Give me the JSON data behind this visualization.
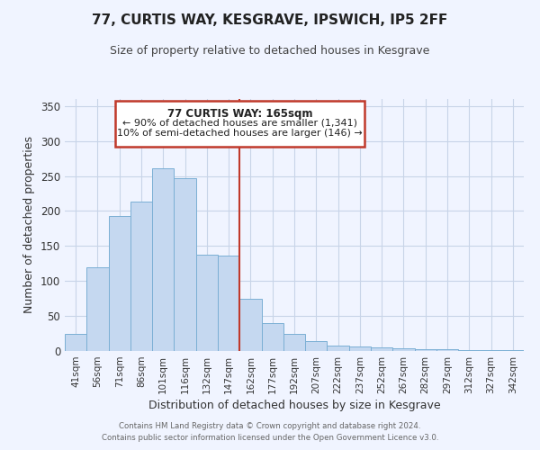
{
  "title": "77, CURTIS WAY, KESGRAVE, IPSWICH, IP5 2FF",
  "subtitle": "Size of property relative to detached houses in Kesgrave",
  "xlabel": "Distribution of detached houses by size in Kesgrave",
  "ylabel": "Number of detached properties",
  "bar_color": "#c5d8f0",
  "bar_edge_color": "#7bafd4",
  "categories": [
    "41sqm",
    "56sqm",
    "71sqm",
    "86sqm",
    "101sqm",
    "116sqm",
    "132sqm",
    "147sqm",
    "162sqm",
    "177sqm",
    "192sqm",
    "207sqm",
    "222sqm",
    "237sqm",
    "252sqm",
    "267sqm",
    "282sqm",
    "297sqm",
    "312sqm",
    "327sqm",
    "342sqm"
  ],
  "values": [
    25,
    120,
    193,
    214,
    261,
    247,
    137,
    136,
    75,
    40,
    25,
    14,
    8,
    7,
    5,
    4,
    2,
    2,
    1,
    1,
    1
  ],
  "ylim": [
    0,
    360
  ],
  "yticks": [
    0,
    50,
    100,
    150,
    200,
    250,
    300,
    350
  ],
  "vline_color": "#c0392b",
  "annotation_title": "77 CURTIS WAY: 165sqm",
  "annotation_line1": "← 90% of detached houses are smaller (1,341)",
  "annotation_line2": "10% of semi-detached houses are larger (146) →",
  "annotation_box_color": "#c0392b",
  "footer_line1": "Contains HM Land Registry data © Crown copyright and database right 2024.",
  "footer_line2": "Contains public sector information licensed under the Open Government Licence v3.0.",
  "background_color": "#f0f4ff",
  "grid_color": "#c8d4e8"
}
